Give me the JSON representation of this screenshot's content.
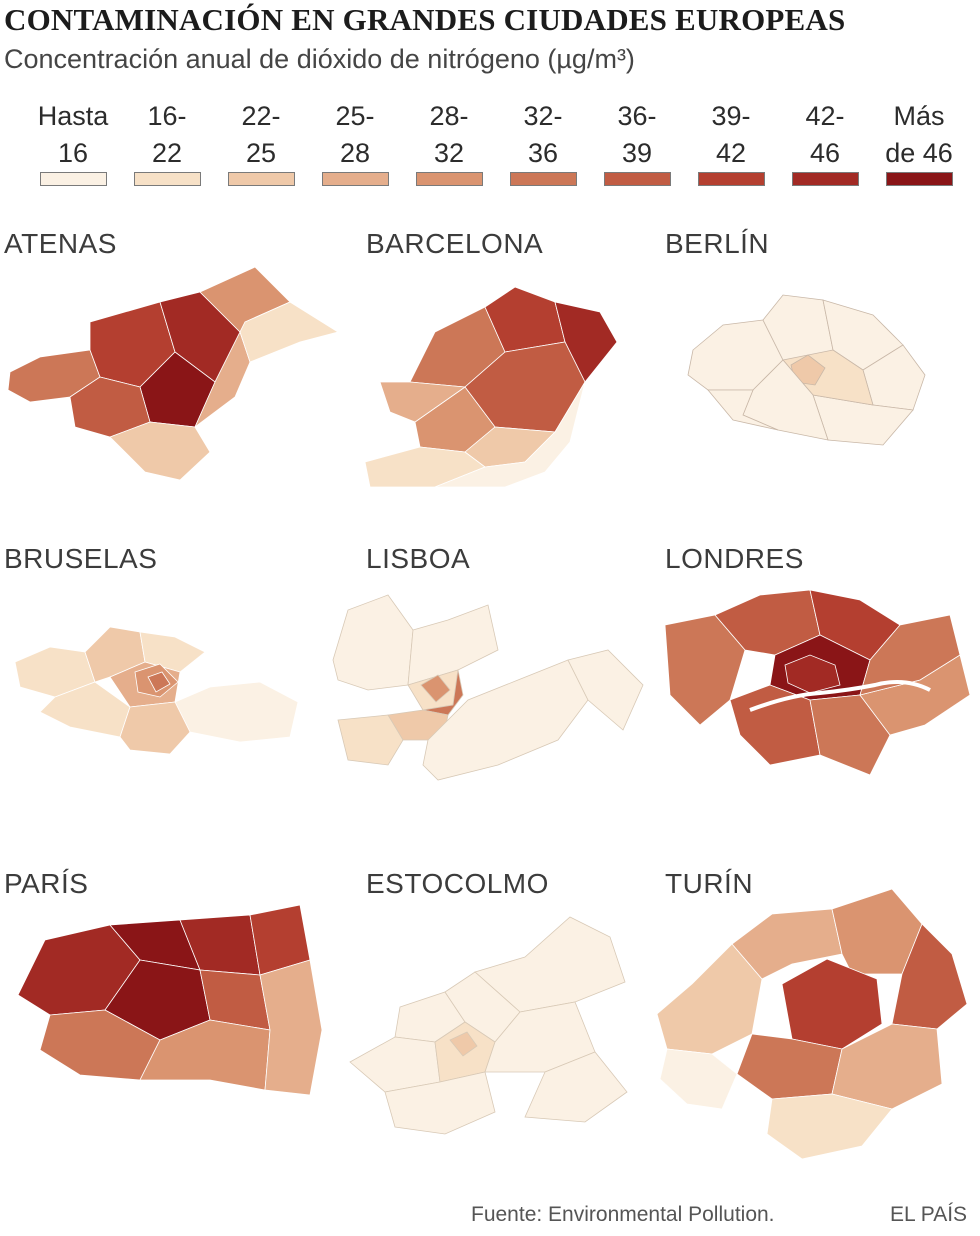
{
  "header": {
    "title": "CONTAMINACIÓN EN GRANDES CIUDADES EUROPEAS",
    "subtitle": "Concentración anual de dióxido de nitrógeno (µg/m³)"
  },
  "legend": [
    {
      "label": "Hasta\n16",
      "color": "#fbf1e4"
    },
    {
      "label": "16-\n22",
      "color": "#f7e1c7"
    },
    {
      "label": "22-\n25",
      "color": "#efc9a9"
    },
    {
      "label": "25-\n28",
      "color": "#e5ae8c"
    },
    {
      "label": "28-\n32",
      "color": "#da9470"
    },
    {
      "label": "32-\n36",
      "color": "#cc7757"
    },
    {
      "label": "36-\n39",
      "color": "#c15c43"
    },
    {
      "label": "39-\n42",
      "color": "#b43f30"
    },
    {
      "label": "42-\n46",
      "color": "#a22a24"
    },
    {
      "label": "Más\nde 46",
      "color": "#8a1517"
    }
  ],
  "cities": [
    {
      "name": "ATENAS",
      "levels": [
        5,
        7,
        8,
        9,
        6,
        4,
        3,
        2,
        1
      ]
    },
    {
      "name": "BARCELONA",
      "levels": [
        5,
        7,
        8,
        6,
        4,
        2,
        1,
        0,
        3
      ]
    },
    {
      "name": "BERLÍN",
      "levels": [
        0,
        0,
        0,
        0,
        0,
        1,
        2,
        0,
        0
      ]
    },
    {
      "name": "BRUSELAS",
      "levels": [
        1,
        2,
        1,
        3,
        4,
        5,
        1,
        0,
        2
      ]
    },
    {
      "name": "LISBOA",
      "levels": [
        0,
        0,
        1,
        4,
        5,
        2,
        0,
        0,
        1
      ]
    },
    {
      "name": "LONDRES",
      "levels": [
        5,
        6,
        7,
        9,
        8,
        6,
        5,
        4,
        5
      ]
    },
    {
      "name": "PARÍS",
      "levels": [
        8,
        9,
        9,
        8,
        7,
        6,
        5,
        4,
        3
      ]
    },
    {
      "name": "ESTOCOLMO",
      "levels": [
        0,
        0,
        0,
        0,
        1,
        2,
        0,
        0,
        0
      ]
    },
    {
      "name": "TURÍN",
      "levels": [
        2,
        3,
        4,
        7,
        6,
        5,
        3,
        1,
        0
      ]
    }
  ],
  "footer": {
    "source": "Fuente: Environmental Pollution.",
    "brand": "EL PAÍS"
  }
}
